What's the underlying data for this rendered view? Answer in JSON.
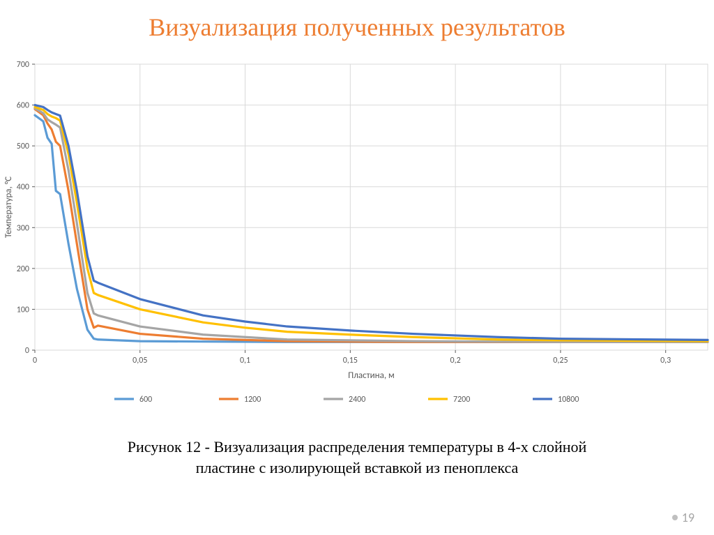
{
  "title": "Визуализация полученных результатов",
  "caption_line1": "Рисунок 12 - Визуализация распределения температуры в 4-х слойной",
  "caption_line2": "пластине с изолирующей вставкой из пеноплекса",
  "page_number": "19",
  "chart": {
    "type": "line",
    "background_color": "#ffffff",
    "plot_border_color": "#d9d9d9",
    "grid_color": "#d9d9d9",
    "axis_text_color": "#595959",
    "tick_fontsize": 12,
    "axis_label_fontsize": 13,
    "legend_fontsize": 12,
    "line_width": 3.2,
    "xlabel": "Пластина,  м",
    "ylabel": "Температура, °С",
    "xlim": [
      0,
      0.32
    ],
    "ylim": [
      0,
      700
    ],
    "xticks": [
      0,
      0.05,
      0.1,
      0.15,
      0.2,
      0.25,
      0.3
    ],
    "xtick_labels": [
      "0",
      "0,05",
      "0,1",
      "0,15",
      "0,2",
      "0,25",
      "0,3"
    ],
    "yticks": [
      0,
      100,
      200,
      300,
      400,
      500,
      600,
      700
    ],
    "series": [
      {
        "name": "600",
        "color": "#5b9bd5",
        "points": [
          [
            0.0,
            575
          ],
          [
            0.004,
            560
          ],
          [
            0.006,
            520
          ],
          [
            0.008,
            505
          ],
          [
            0.01,
            390
          ],
          [
            0.012,
            382
          ],
          [
            0.016,
            260
          ],
          [
            0.02,
            150
          ],
          [
            0.025,
            50
          ],
          [
            0.028,
            28
          ],
          [
            0.03,
            26
          ],
          [
            0.05,
            22
          ],
          [
            0.08,
            21
          ],
          [
            0.12,
            20
          ],
          [
            0.18,
            20
          ],
          [
            0.25,
            20
          ],
          [
            0.32,
            20
          ]
        ]
      },
      {
        "name": "1200",
        "color": "#ed7d31",
        "points": [
          [
            0.0,
            590
          ],
          [
            0.004,
            575
          ],
          [
            0.006,
            555
          ],
          [
            0.008,
            540
          ],
          [
            0.01,
            510
          ],
          [
            0.012,
            500
          ],
          [
            0.016,
            390
          ],
          [
            0.02,
            260
          ],
          [
            0.025,
            100
          ],
          [
            0.028,
            55
          ],
          [
            0.03,
            60
          ],
          [
            0.05,
            40
          ],
          [
            0.08,
            28
          ],
          [
            0.12,
            22
          ],
          [
            0.18,
            20
          ],
          [
            0.25,
            20
          ],
          [
            0.32,
            20
          ]
        ]
      },
      {
        "name": "2400",
        "color": "#a5a5a5",
        "points": [
          [
            0.0,
            592
          ],
          [
            0.004,
            580
          ],
          [
            0.006,
            565
          ],
          [
            0.008,
            558
          ],
          [
            0.01,
            552
          ],
          [
            0.012,
            545
          ],
          [
            0.016,
            440
          ],
          [
            0.02,
            310
          ],
          [
            0.025,
            140
          ],
          [
            0.028,
            90
          ],
          [
            0.03,
            85
          ],
          [
            0.05,
            58
          ],
          [
            0.08,
            38
          ],
          [
            0.12,
            26
          ],
          [
            0.18,
            22
          ],
          [
            0.25,
            20
          ],
          [
            0.32,
            20
          ]
        ]
      },
      {
        "name": "7200",
        "color": "#ffc000",
        "points": [
          [
            0.0,
            595
          ],
          [
            0.004,
            588
          ],
          [
            0.006,
            578
          ],
          [
            0.008,
            572
          ],
          [
            0.01,
            568
          ],
          [
            0.012,
            562
          ],
          [
            0.016,
            480
          ],
          [
            0.02,
            360
          ],
          [
            0.025,
            200
          ],
          [
            0.028,
            140
          ],
          [
            0.03,
            135
          ],
          [
            0.05,
            100
          ],
          [
            0.08,
            68
          ],
          [
            0.1,
            55
          ],
          [
            0.12,
            45
          ],
          [
            0.15,
            38
          ],
          [
            0.18,
            32
          ],
          [
            0.22,
            26
          ],
          [
            0.25,
            24
          ],
          [
            0.32,
            22
          ]
        ]
      },
      {
        "name": "10800",
        "color": "#4472c4",
        "points": [
          [
            0.0,
            600
          ],
          [
            0.004,
            595
          ],
          [
            0.006,
            588
          ],
          [
            0.008,
            582
          ],
          [
            0.01,
            578
          ],
          [
            0.012,
            574
          ],
          [
            0.016,
            500
          ],
          [
            0.02,
            390
          ],
          [
            0.025,
            230
          ],
          [
            0.028,
            170
          ],
          [
            0.03,
            165
          ],
          [
            0.05,
            125
          ],
          [
            0.08,
            85
          ],
          [
            0.1,
            70
          ],
          [
            0.12,
            58
          ],
          [
            0.15,
            48
          ],
          [
            0.18,
            40
          ],
          [
            0.22,
            32
          ],
          [
            0.25,
            28
          ],
          [
            0.32,
            25
          ]
        ]
      }
    ],
    "legend_dash_length": 28
  }
}
